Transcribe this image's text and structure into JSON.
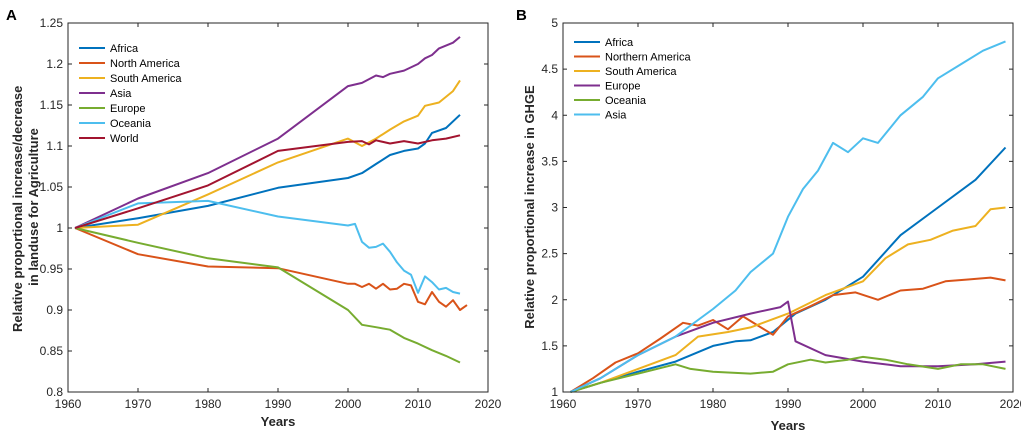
{
  "panels": [
    {
      "panel_label": "A",
      "inner_label": "A"
    },
    {
      "panel_label": "B",
      "inner_label": ""
    }
  ],
  "chart_data": [
    {
      "type": "line",
      "title": "",
      "xlabel": "Years",
      "ylabel": "Relative proportional increase/decrease in landuse for Agriculture",
      "ylabel_lines": [
        "Relative proportional increase/decrease",
        "in landuse for Agriculture"
      ],
      "xlim": [
        1960,
        2020
      ],
      "ylim": [
        0.8,
        1.25
      ],
      "xticks": [
        1960,
        1970,
        1980,
        1990,
        2000,
        2010,
        2020
      ],
      "yticks": [
        0.8,
        0.85,
        0.9,
        0.95,
        1,
        1.05,
        1.1,
        1.15,
        1.2,
        1.25
      ],
      "grid": false,
      "legend_position": "top-left",
      "series": [
        {
          "name": "Africa",
          "color": "#0072BD",
          "points": [
            [
              1961,
              1.0
            ],
            [
              1970,
              1.012
            ],
            [
              1980,
              1.027
            ],
            [
              1990,
              1.049
            ],
            [
              2000,
              1.061
            ],
            [
              2002,
              1.067
            ],
            [
              2004,
              1.078
            ],
            [
              2006,
              1.089
            ],
            [
              2008,
              1.094
            ],
            [
              2010,
              1.097
            ],
            [
              2011,
              1.103
            ],
            [
              2012,
              1.116
            ],
            [
              2014,
              1.122
            ],
            [
              2016,
              1.138
            ]
          ]
        },
        {
          "name": "North America",
          "color": "#D95319",
          "points": [
            [
              1961,
              1.0
            ],
            [
              1970,
              0.968
            ],
            [
              1980,
              0.953
            ],
            [
              1990,
              0.951
            ],
            [
              2000,
              0.932
            ],
            [
              2001,
              0.932
            ],
            [
              2002,
              0.928
            ],
            [
              2003,
              0.932
            ],
            [
              2004,
              0.926
            ],
            [
              2005,
              0.932
            ],
            [
              2006,
              0.925
            ],
            [
              2007,
              0.926
            ],
            [
              2008,
              0.932
            ],
            [
              2009,
              0.93
            ],
            [
              2010,
              0.91
            ],
            [
              2011,
              0.907
            ],
            [
              2012,
              0.922
            ],
            [
              2013,
              0.91
            ],
            [
              2014,
              0.904
            ],
            [
              2015,
              0.912
            ],
            [
              2016,
              0.9
            ],
            [
              2017,
              0.906
            ]
          ]
        },
        {
          "name": "South America",
          "color": "#EDB120",
          "points": [
            [
              1961,
              1.0
            ],
            [
              1970,
              1.004
            ],
            [
              1980,
              1.041
            ],
            [
              1990,
              1.08
            ],
            [
              2000,
              1.109
            ],
            [
              2002,
              1.1
            ],
            [
              2004,
              1.109
            ],
            [
              2006,
              1.12
            ],
            [
              2008,
              1.13
            ],
            [
              2010,
              1.137
            ],
            [
              2011,
              1.149
            ],
            [
              2013,
              1.153
            ],
            [
              2015,
              1.167
            ],
            [
              2016,
              1.18
            ]
          ]
        },
        {
          "name": "Asia",
          "color": "#7E2F8E",
          "points": [
            [
              1961,
              1.0
            ],
            [
              1970,
              1.036
            ],
            [
              1980,
              1.067
            ],
            [
              1990,
              1.109
            ],
            [
              2000,
              1.173
            ],
            [
              2002,
              1.177
            ],
            [
              2004,
              1.186
            ],
            [
              2005,
              1.184
            ],
            [
              2006,
              1.188
            ],
            [
              2008,
              1.192
            ],
            [
              2010,
              1.2
            ],
            [
              2011,
              1.207
            ],
            [
              2012,
              1.211
            ],
            [
              2013,
              1.219
            ],
            [
              2015,
              1.226
            ],
            [
              2016,
              1.233
            ]
          ]
        },
        {
          "name": "Europe",
          "color": "#77AC30",
          "points": [
            [
              1961,
              1.0
            ],
            [
              1970,
              0.982
            ],
            [
              1980,
              0.963
            ],
            [
              1990,
              0.952
            ],
            [
              2000,
              0.9
            ],
            [
              2002,
              0.882
            ],
            [
              2004,
              0.879
            ],
            [
              2006,
              0.876
            ],
            [
              2008,
              0.866
            ],
            [
              2010,
              0.859
            ],
            [
              2012,
              0.851
            ],
            [
              2014,
              0.844
            ],
            [
              2016,
              0.836
            ]
          ]
        },
        {
          "name": "Oceania",
          "color": "#4DBEEE",
          "points": [
            [
              1961,
              1.0
            ],
            [
              1970,
              1.03
            ],
            [
              1980,
              1.033
            ],
            [
              1990,
              1.014
            ],
            [
              2000,
              1.003
            ],
            [
              2001,
              1.005
            ],
            [
              2002,
              0.983
            ],
            [
              2003,
              0.976
            ],
            [
              2004,
              0.977
            ],
            [
              2005,
              0.981
            ],
            [
              2006,
              0.971
            ],
            [
              2007,
              0.958
            ],
            [
              2008,
              0.948
            ],
            [
              2009,
              0.943
            ],
            [
              2010,
              0.921
            ],
            [
              2011,
              0.941
            ],
            [
              2012,
              0.934
            ],
            [
              2013,
              0.925
            ],
            [
              2014,
              0.927
            ],
            [
              2015,
              0.922
            ],
            [
              2016,
              0.92
            ]
          ]
        },
        {
          "name": "World",
          "color": "#A2142F",
          "points": [
            [
              1961,
              1.0
            ],
            [
              1970,
              1.024
            ],
            [
              1980,
              1.052
            ],
            [
              1990,
              1.094
            ],
            [
              2000,
              1.105
            ],
            [
              2002,
              1.106
            ],
            [
              2003,
              1.102
            ],
            [
              2004,
              1.107
            ],
            [
              2006,
              1.103
            ],
            [
              2008,
              1.106
            ],
            [
              2010,
              1.103
            ],
            [
              2012,
              1.107
            ],
            [
              2014,
              1.109
            ],
            [
              2016,
              1.113
            ]
          ]
        }
      ]
    },
    {
      "type": "line",
      "title": "",
      "xlabel": "Years",
      "ylabel": "Relative proportional increase in GHGE",
      "ylabel_lines": [
        "Relative proportional increase in GHGE"
      ],
      "xlim": [
        1960,
        2020
      ],
      "ylim": [
        1,
        5
      ],
      "xticks": [
        1960,
        1970,
        1980,
        1990,
        2000,
        2010,
        2020
      ],
      "yticks": [
        1,
        1.5,
        2,
        2.5,
        3,
        3.5,
        4,
        4.5,
        5
      ],
      "grid": false,
      "legend_position": "top-left",
      "series": [
        {
          "name": "Africa",
          "color": "#0072BD",
          "points": [
            [
              1961,
              1.0
            ],
            [
              1965,
              1.1
            ],
            [
              1970,
              1.22
            ],
            [
              1975,
              1.33
            ],
            [
              1980,
              1.5
            ],
            [
              1983,
              1.55
            ],
            [
              1985,
              1.56
            ],
            [
              1988,
              1.65
            ],
            [
              1991,
              1.85
            ],
            [
              1995,
              2.0
            ],
            [
              2000,
              2.25
            ],
            [
              2005,
              2.7
            ],
            [
              2010,
              3.0
            ],
            [
              2015,
              3.3
            ],
            [
              2019,
              3.65
            ]
          ]
        },
        {
          "name": "Northern America",
          "color": "#D95319",
          "points": [
            [
              1961,
              1.0
            ],
            [
              1964,
              1.15
            ],
            [
              1967,
              1.32
            ],
            [
              1970,
              1.42
            ],
            [
              1973,
              1.58
            ],
            [
              1976,
              1.75
            ],
            [
              1978,
              1.72
            ],
            [
              1980,
              1.78
            ],
            [
              1982,
              1.68
            ],
            [
              1984,
              1.82
            ],
            [
              1986,
              1.72
            ],
            [
              1988,
              1.62
            ],
            [
              1990,
              1.82
            ],
            [
              1993,
              1.93
            ],
            [
              1996,
              2.05
            ],
            [
              1999,
              2.08
            ],
            [
              2002,
              2.0
            ],
            [
              2005,
              2.1
            ],
            [
              2008,
              2.12
            ],
            [
              2011,
              2.2
            ],
            [
              2014,
              2.22
            ],
            [
              2017,
              2.24
            ],
            [
              2019,
              2.21
            ]
          ]
        },
        {
          "name": "South America",
          "color": "#EDB120",
          "points": [
            [
              1961,
              1.0
            ],
            [
              1965,
              1.1
            ],
            [
              1970,
              1.25
            ],
            [
              1975,
              1.4
            ],
            [
              1978,
              1.6
            ],
            [
              1982,
              1.65
            ],
            [
              1985,
              1.7
            ],
            [
              1990,
              1.85
            ],
            [
              1995,
              2.05
            ],
            [
              2000,
              2.2
            ],
            [
              2003,
              2.45
            ],
            [
              2006,
              2.6
            ],
            [
              2009,
              2.65
            ],
            [
              2012,
              2.75
            ],
            [
              2015,
              2.8
            ],
            [
              2017,
              2.98
            ],
            [
              2019,
              3.0
            ]
          ]
        },
        {
          "name": "Europe",
          "color": "#7E2F8E",
          "points": [
            [
              1961,
              1.0
            ],
            [
              1965,
              1.15
            ],
            [
              1970,
              1.4
            ],
            [
              1975,
              1.6
            ],
            [
              1980,
              1.75
            ],
            [
              1985,
              1.85
            ],
            [
              1989,
              1.92
            ],
            [
              1990,
              1.98
            ],
            [
              1991,
              1.55
            ],
            [
              1995,
              1.4
            ],
            [
              2000,
              1.33
            ],
            [
              2005,
              1.28
            ],
            [
              2010,
              1.28
            ],
            [
              2015,
              1.3
            ],
            [
              2019,
              1.33
            ]
          ]
        },
        {
          "name": "Oceania",
          "color": "#77AC30",
          "points": [
            [
              1961,
              1.0
            ],
            [
              1965,
              1.1
            ],
            [
              1970,
              1.2
            ],
            [
              1975,
              1.3
            ],
            [
              1977,
              1.25
            ],
            [
              1980,
              1.22
            ],
            [
              1985,
              1.2
            ],
            [
              1988,
              1.22
            ],
            [
              1990,
              1.3
            ],
            [
              1993,
              1.35
            ],
            [
              1995,
              1.32
            ],
            [
              1998,
              1.35
            ],
            [
              2000,
              1.38
            ],
            [
              2003,
              1.35
            ],
            [
              2006,
              1.3
            ],
            [
              2010,
              1.25
            ],
            [
              2013,
              1.3
            ],
            [
              2016,
              1.3
            ],
            [
              2019,
              1.25
            ]
          ]
        },
        {
          "name": "Asia",
          "color": "#4DBEEE",
          "points": [
            [
              1961,
              1.0
            ],
            [
              1965,
              1.15
            ],
            [
              1970,
              1.4
            ],
            [
              1975,
              1.6
            ],
            [
              1980,
              1.9
            ],
            [
              1983,
              2.1
            ],
            [
              1985,
              2.3
            ],
            [
              1988,
              2.5
            ],
            [
              1990,
              2.9
            ],
            [
              1992,
              3.2
            ],
            [
              1994,
              3.4
            ],
            [
              1996,
              3.7
            ],
            [
              1998,
              3.6
            ],
            [
              2000,
              3.75
            ],
            [
              2002,
              3.7
            ],
            [
              2005,
              4.0
            ],
            [
              2008,
              4.2
            ],
            [
              2010,
              4.4
            ],
            [
              2013,
              4.55
            ],
            [
              2016,
              4.7
            ],
            [
              2019,
              4.8
            ]
          ]
        }
      ]
    }
  ]
}
